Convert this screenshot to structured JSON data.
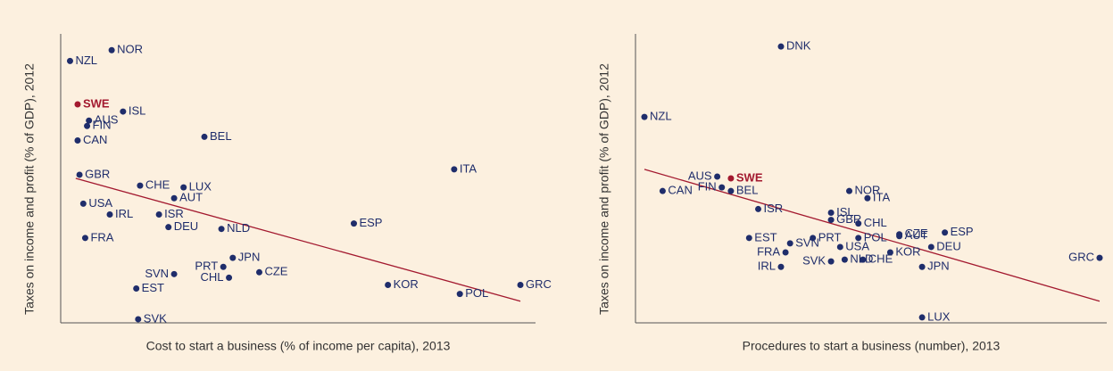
{
  "chart_data": [
    {
      "type": "scatter",
      "xlabel": "Cost to start a business (% of income per capita), 2013",
      "ylabel": "Taxes on income and profit (% of GDP), 2012",
      "xlim": [
        0,
        25
      ],
      "ylim": [
        0,
        16
      ],
      "labels": [
        "NZL",
        "NOR",
        "SWE",
        "AUS",
        "ISL",
        "FIN",
        "CAN",
        "BEL",
        "GBR",
        "ITA",
        "CHE",
        "LUX",
        "AUT",
        "USA",
        "IRL",
        "ISR",
        "DEU",
        "NLD",
        "ESP",
        "FRA",
        "JPN",
        "PRT",
        "SVN",
        "CZE",
        "CHL",
        "KOR",
        "GRC",
        "EST",
        "POL",
        "SVK"
      ],
      "x": [
        0.4,
        2.6,
        0.8,
        1.4,
        3.2,
        1.3,
        0.8,
        7.5,
        0.9,
        20.7,
        4.1,
        6.4,
        5.9,
        1.1,
        2.5,
        5.1,
        5.6,
        8.4,
        15.4,
        1.2,
        9.0,
        8.5,
        5.9,
        10.4,
        8.8,
        17.2,
        24.2,
        3.9,
        21.0,
        4.0
      ],
      "y": [
        14.5,
        15.1,
        12.1,
        11.2,
        11.7,
        10.9,
        10.1,
        10.3,
        8.2,
        8.5,
        7.6,
        7.5,
        6.9,
        6.6,
        6.0,
        6.0,
        5.3,
        5.2,
        5.5,
        4.7,
        3.6,
        3.1,
        2.7,
        2.8,
        2.5,
        2.1,
        2.1,
        1.9,
        1.6,
        0.2
      ],
      "colors": [
        "#1f2d6b",
        "#1f2d6b",
        "#a3192f",
        "#1f2d6b",
        "#1f2d6b",
        "#1f2d6b",
        "#1f2d6b",
        "#1f2d6b",
        "#1f2d6b",
        "#1f2d6b",
        "#1f2d6b",
        "#1f2d6b",
        "#1f2d6b",
        "#1f2d6b",
        "#1f2d6b",
        "#1f2d6b",
        "#1f2d6b",
        "#1f2d6b",
        "#1f2d6b",
        "#1f2d6b",
        "#1f2d6b",
        "#1f2d6b",
        "#1f2d6b",
        "#1f2d6b",
        "#1f2d6b",
        "#1f2d6b",
        "#1f2d6b",
        "#1f2d6b",
        "#1f2d6b",
        "#1f2d6b"
      ],
      "trend": {
        "x": [
          0.7,
          24.2
        ],
        "y": [
          8.0,
          1.2
        ],
        "color": "#a3192f"
      }
    },
    {
      "type": "scatter",
      "xlabel": "Procedures to start a business (number), 2013",
      "ylabel": "Taxes on income and profit (% of GDP), 2012",
      "xlim": [
        1,
        11
      ],
      "ylim": [
        0,
        16
      ],
      "labels": [
        "DNK",
        "NZL",
        "AUS",
        "SWE",
        "CAN",
        "FIN",
        "BEL",
        "ISR",
        "NOR",
        "ITA",
        "ISL",
        "GBR",
        "CHL",
        "CZE",
        "AUT",
        "ESP",
        "EST",
        "SVN",
        "PRT",
        "POL",
        "USA",
        "FRA",
        "KOR",
        "DEU",
        "SVK",
        "CHE",
        "NLD",
        "IRL",
        "JPN",
        "GRC",
        "LUX"
      ],
      "x": [
        4.0,
        1.0,
        2.6,
        2.9,
        1.4,
        2.7,
        2.9,
        3.5,
        5.5,
        5.9,
        5.1,
        5.1,
        5.7,
        6.6,
        6.6,
        7.6,
        3.3,
        4.2,
        4.7,
        5.7,
        5.3,
        4.1,
        6.4,
        7.3,
        5.1,
        5.8,
        5.4,
        4.0,
        7.1,
        11.0,
        7.1
      ],
      "y": [
        15.3,
        11.4,
        8.1,
        8.0,
        7.3,
        7.5,
        7.3,
        6.3,
        7.3,
        6.9,
        6.1,
        5.7,
        5.5,
        4.9,
        4.8,
        5.0,
        4.7,
        4.4,
        4.7,
        4.7,
        4.2,
        3.9,
        3.9,
        4.2,
        3.4,
        3.5,
        3.5,
        3.1,
        3.1,
        3.6,
        0.3
      ],
      "colors": [
        "#1f2d6b",
        "#1f2d6b",
        "#1f2d6b",
        "#a3192f",
        "#1f2d6b",
        "#1f2d6b",
        "#1f2d6b",
        "#1f2d6b",
        "#1f2d6b",
        "#1f2d6b",
        "#1f2d6b",
        "#1f2d6b",
        "#1f2d6b",
        "#1f2d6b",
        "#1f2d6b",
        "#1f2d6b",
        "#1f2d6b",
        "#1f2d6b",
        "#1f2d6b",
        "#1f2d6b",
        "#1f2d6b",
        "#1f2d6b",
        "#1f2d6b",
        "#1f2d6b",
        "#1f2d6b",
        "#1f2d6b",
        "#1f2d6b",
        "#1f2d6b",
        "#1f2d6b",
        "#1f2d6b",
        "#1f2d6b"
      ],
      "trend": {
        "x": [
          1.0,
          11.0
        ],
        "y": [
          8.5,
          1.2
        ],
        "color": "#a3192f"
      }
    }
  ]
}
